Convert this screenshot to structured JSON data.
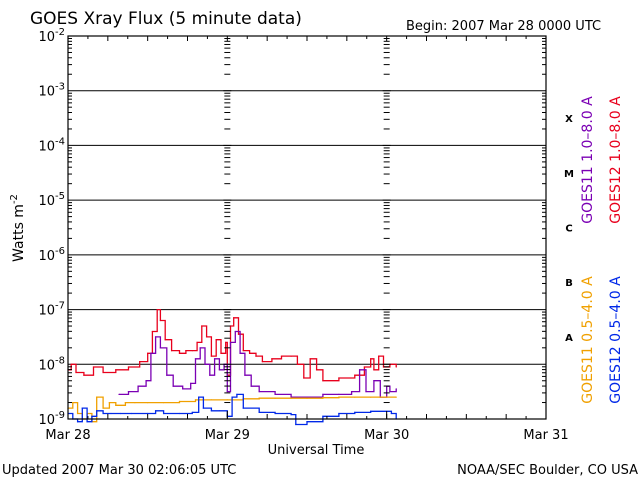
{
  "title": "GOES Xray Flux (5 minute data)",
  "begin_label": "Begin:  2007 Mar 28 0000 UTC",
  "updated": "Updated 2007 Mar 30 02:06:05 UTC",
  "credit": "NOAA/SEC Boulder, CO USA",
  "chart_data": {
    "type": "line",
    "title": "GOES Xray Flux (5 minute data)",
    "xlabel": "Universal Time",
    "ylabel": "Watts m",
    "ylabel_sup": "-2",
    "xlim": [
      0,
      3
    ],
    "ylim_log10": [
      -9,
      -2
    ],
    "x_unit": "days since 2007 Mar 28 0000 UTC",
    "x_ticks": [
      {
        "x": 0,
        "label": "Mar 28"
      },
      {
        "x": 1,
        "label": "Mar 29"
      },
      {
        "x": 2,
        "label": "Mar 30"
      },
      {
        "x": 3,
        "label": "Mar 31"
      }
    ],
    "y_ticks": [
      {
        "exp": -9,
        "base": "10",
        "sup": "-9"
      },
      {
        "exp": -8,
        "base": "10",
        "sup": "-8"
      },
      {
        "exp": -7,
        "base": "10",
        "sup": "-7"
      },
      {
        "exp": -6,
        "base": "10",
        "sup": "-6"
      },
      {
        "exp": -5,
        "base": "10",
        "sup": "-5"
      },
      {
        "exp": -4,
        "base": "10",
        "sup": "-4"
      },
      {
        "exp": -3,
        "base": "10",
        "sup": "-3"
      },
      {
        "exp": -2,
        "base": "10",
        "sup": "-2"
      }
    ],
    "flare_classes": [
      {
        "label": "X",
        "exp": -3.5
      },
      {
        "label": "M",
        "exp": -4.5
      },
      {
        "label": "C",
        "exp": -5.5
      },
      {
        "label": "B",
        "exp": -6.5
      },
      {
        "label": "A",
        "exp": -7.5
      }
    ],
    "legend": {
      "left": [
        {
          "text": "GOES11 1.0–8.0 A",
          "color": "#7b00b4"
        },
        {
          "text": "GOES11 0.5–4.0 A",
          "color": "#f0a000"
        }
      ],
      "right": [
        {
          "text": "GOES12 1.0–8.0 A",
          "color": "#e8001c"
        },
        {
          "text": "GOES12 0.5–4.0 A",
          "color": "#0028e8"
        }
      ]
    },
    "series": [
      {
        "name": "GOES12 1.0-8.0 A",
        "color": "#e8001c",
        "points": [
          [
            0.0,
            -8.1
          ],
          [
            0.02,
            -8.0
          ],
          [
            0.05,
            -8.15
          ],
          [
            0.1,
            -8.2
          ],
          [
            0.16,
            -8.05
          ],
          [
            0.22,
            -8.15
          ],
          [
            0.3,
            -8.1
          ],
          [
            0.38,
            -8.05
          ],
          [
            0.45,
            -7.95
          ],
          [
            0.5,
            -7.8
          ],
          [
            0.53,
            -7.4
          ],
          [
            0.56,
            -7.0
          ],
          [
            0.58,
            -7.2
          ],
          [
            0.61,
            -7.55
          ],
          [
            0.65,
            -7.75
          ],
          [
            0.7,
            -7.8
          ],
          [
            0.74,
            -7.75
          ],
          [
            0.78,
            -7.75
          ],
          [
            0.81,
            -7.6
          ],
          [
            0.84,
            -7.3
          ],
          [
            0.87,
            -7.5
          ],
          [
            0.9,
            -7.85
          ],
          [
            0.93,
            -7.55
          ],
          [
            0.96,
            -7.8
          ],
          [
            0.99,
            -7.6
          ],
          [
            1.0,
            -8.2
          ],
          [
            1.02,
            -7.3
          ],
          [
            1.04,
            -7.15
          ],
          [
            1.07,
            -7.45
          ],
          [
            1.1,
            -7.75
          ],
          [
            1.14,
            -7.8
          ],
          [
            1.18,
            -7.85
          ],
          [
            1.22,
            -7.95
          ],
          [
            1.28,
            -7.9
          ],
          [
            1.34,
            -7.85
          ],
          [
            1.4,
            -7.85
          ],
          [
            1.44,
            -8.0
          ],
          [
            1.48,
            -8.25
          ],
          [
            1.52,
            -7.9
          ],
          [
            1.56,
            -8.1
          ],
          [
            1.6,
            -8.3
          ],
          [
            1.7,
            -8.25
          ],
          [
            1.8,
            -8.2
          ],
          [
            1.86,
            -8.05
          ],
          [
            1.9,
            -7.9
          ],
          [
            1.92,
            -8.1
          ],
          [
            1.95,
            -7.85
          ],
          [
            1.98,
            -8.05
          ],
          [
            2.02,
            -8.0
          ],
          [
            2.06,
            -8.05
          ]
        ]
      },
      {
        "name": "GOES11 1.0-8.0 A",
        "color": "#7b00b4",
        "points": [
          [
            0.32,
            -8.55
          ],
          [
            0.38,
            -8.5
          ],
          [
            0.44,
            -8.4
          ],
          [
            0.49,
            -8.3
          ],
          [
            0.52,
            -7.8
          ],
          [
            0.55,
            -7.5
          ],
          [
            0.58,
            -7.7
          ],
          [
            0.62,
            -8.2
          ],
          [
            0.66,
            -8.4
          ],
          [
            0.72,
            -8.45
          ],
          [
            0.77,
            -8.35
          ],
          [
            0.8,
            -7.9
          ],
          [
            0.83,
            -7.7
          ],
          [
            0.86,
            -8.0
          ],
          [
            0.89,
            -8.2
          ],
          [
            0.92,
            -7.9
          ],
          [
            0.95,
            -8.1
          ],
          [
            0.98,
            -8.0
          ],
          [
            1.0,
            -8.5
          ],
          [
            1.02,
            -7.6
          ],
          [
            1.05,
            -7.4
          ],
          [
            1.08,
            -7.8
          ],
          [
            1.11,
            -8.2
          ],
          [
            1.15,
            -8.4
          ],
          [
            1.2,
            -8.5
          ],
          [
            1.3,
            -8.55
          ],
          [
            1.4,
            -8.6
          ],
          [
            1.5,
            -8.6
          ],
          [
            1.6,
            -8.55
          ],
          [
            1.7,
            -8.55
          ],
          [
            1.78,
            -8.5
          ],
          [
            1.83,
            -8.1
          ],
          [
            1.87,
            -8.5
          ],
          [
            1.92,
            -8.3
          ],
          [
            1.96,
            -8.6
          ],
          [
            2.0,
            -8.4
          ],
          [
            2.02,
            -8.5
          ],
          [
            2.06,
            -8.45
          ]
        ]
      },
      {
        "name": "GOES11 0.5-4.0 A",
        "color": "#f0a000",
        "points": [
          [
            0.0,
            -8.8
          ],
          [
            0.03,
            -8.7
          ],
          [
            0.06,
            -8.9
          ],
          [
            0.09,
            -9.0
          ],
          [
            0.12,
            -8.9
          ],
          [
            0.15,
            -9.05
          ],
          [
            0.18,
            -8.6
          ],
          [
            0.22,
            -8.8
          ],
          [
            0.26,
            -8.7
          ],
          [
            0.3,
            -8.75
          ],
          [
            0.36,
            -8.7
          ],
          [
            0.42,
            -8.7
          ],
          [
            0.5,
            -8.7
          ],
          [
            0.6,
            -8.7
          ],
          [
            0.7,
            -8.68
          ],
          [
            0.8,
            -8.65
          ],
          [
            0.9,
            -8.65
          ],
          [
            1.0,
            -8.65
          ],
          [
            1.1,
            -8.63
          ],
          [
            1.2,
            -8.62
          ],
          [
            1.3,
            -8.62
          ],
          [
            1.4,
            -8.62
          ],
          [
            1.5,
            -8.62
          ],
          [
            1.6,
            -8.61
          ],
          [
            1.7,
            -8.6
          ],
          [
            1.8,
            -8.6
          ],
          [
            1.9,
            -8.6
          ],
          [
            2.0,
            -8.6
          ],
          [
            2.06,
            -8.6
          ]
        ]
      },
      {
        "name": "GOES12 0.5-4.0 A",
        "color": "#0028e8",
        "points": [
          [
            0.0,
            -8.9
          ],
          [
            0.03,
            -9.0
          ],
          [
            0.06,
            -9.05
          ],
          [
            0.09,
            -8.8
          ],
          [
            0.12,
            -9.05
          ],
          [
            0.15,
            -8.95
          ],
          [
            0.18,
            -8.85
          ],
          [
            0.22,
            -8.9
          ],
          [
            0.27,
            -8.9
          ],
          [
            0.33,
            -8.9
          ],
          [
            0.4,
            -8.9
          ],
          [
            0.5,
            -8.9
          ],
          [
            0.55,
            -8.85
          ],
          [
            0.6,
            -8.9
          ],
          [
            0.7,
            -8.9
          ],
          [
            0.78,
            -8.88
          ],
          [
            0.82,
            -8.6
          ],
          [
            0.85,
            -8.8
          ],
          [
            0.9,
            -8.85
          ],
          [
            0.95,
            -8.85
          ],
          [
            1.0,
            -8.95
          ],
          [
            1.03,
            -8.6
          ],
          [
            1.06,
            -8.55
          ],
          [
            1.1,
            -8.8
          ],
          [
            1.2,
            -8.88
          ],
          [
            1.3,
            -8.9
          ],
          [
            1.4,
            -8.92
          ],
          [
            1.43,
            -9.1
          ],
          [
            1.5,
            -9.05
          ],
          [
            1.6,
            -8.95
          ],
          [
            1.7,
            -8.9
          ],
          [
            1.8,
            -8.88
          ],
          [
            1.9,
            -8.86
          ],
          [
            2.0,
            -8.86
          ],
          [
            2.03,
            -8.9
          ],
          [
            2.06,
            -9.0
          ]
        ]
      }
    ]
  }
}
